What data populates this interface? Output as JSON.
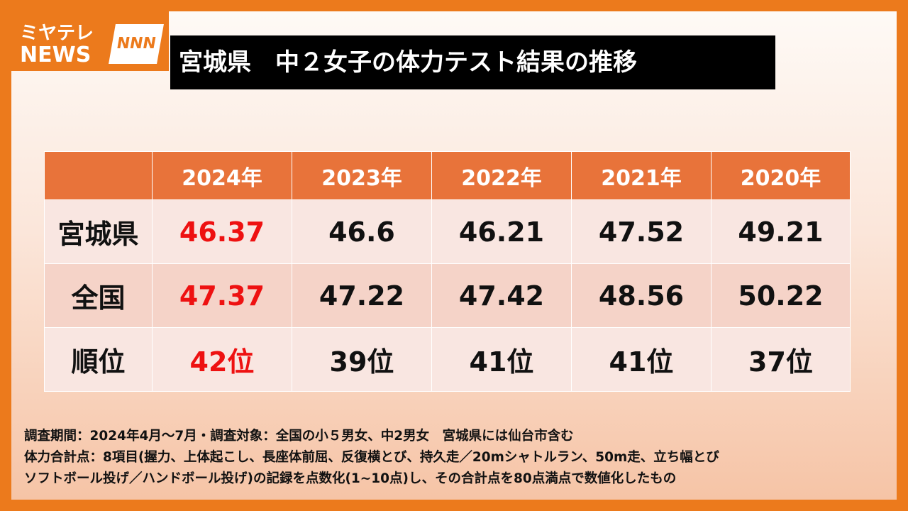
{
  "logo": {
    "line1": "ミヤテレ",
    "line2": "NEWS",
    "mark": "NNN"
  },
  "title": "宮城県　中２女子の体力テスト結果の推移",
  "table": {
    "header": [
      "2024年",
      "2023年",
      "2022年",
      "2021年",
      "2020年"
    ],
    "rows": [
      [
        "宮城県",
        "46.37",
        "46.6",
        "46.21",
        "47.52",
        "49.21"
      ],
      [
        "全国",
        "47.37",
        "47.22",
        "47.42",
        "48.56",
        "50.22"
      ],
      [
        "順位",
        "42位",
        "39位",
        "41位",
        "41位",
        "37位"
      ]
    ]
  },
  "notes": [
    "調査期間：2024年4月～7月・調査対象：全国の小５男女、中2男女　宮城県には仙台市含む",
    "体力合計点：8項目(握力、上体起こし、長座体前屈、反復横とび、持久走／20mシャトルラン、50m走、立ち幅とび",
    "ソフトボール投げ／ハンドボール投げ)の記録を点数化(1~10点)し、その合計点を80点満点で数値化したもの"
  ]
}
